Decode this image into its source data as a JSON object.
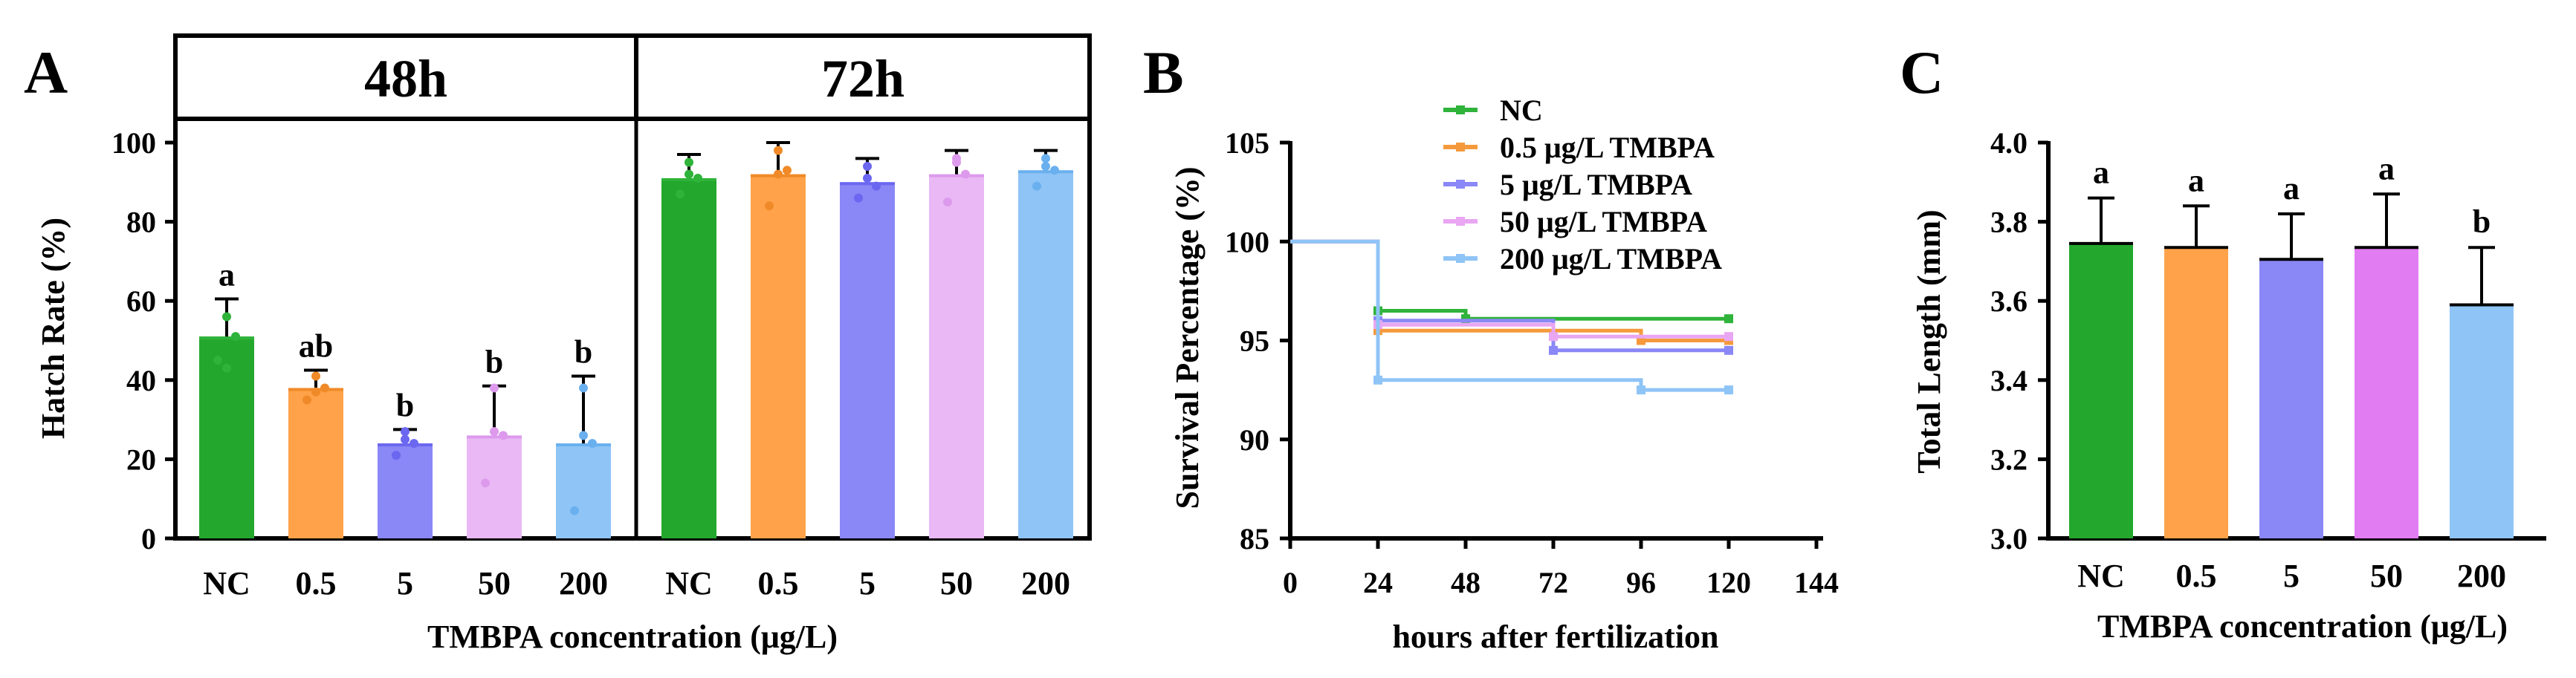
{
  "chart_data": [
    {
      "panel": "A",
      "type": "bar",
      "facets": [
        "48h",
        "72h"
      ],
      "categories": [
        "NC",
        "0.5",
        "5",
        "50",
        "200"
      ],
      "xlabel": "TMBPA concentration (μg/L)",
      "ylabel": "Hatch Rate (%)",
      "ylim": [
        0,
        100
      ],
      "yticks": [
        0,
        20,
        40,
        60,
        80,
        100
      ],
      "colors": [
        "#23a82d",
        "#ffa24a",
        "#8a87f6",
        "#e9b8f5",
        "#8fc4f6"
      ],
      "point_colors": [
        "#2fb33a",
        "#f08a28",
        "#6b67f0",
        "#dd9aed",
        "#6ab0ef"
      ],
      "groups": [
        {
          "facet": "48h",
          "values": [
            51,
            38,
            24,
            26,
            24
          ],
          "errors": [
            9.5,
            4.5,
            3.5,
            12.5,
            17
          ],
          "labels": [
            "a",
            "ab",
            "b",
            "b",
            "b"
          ],
          "points": [
            [
              56,
              45,
              51,
              43
            ],
            [
              41,
              35,
              38,
              37
            ],
            [
              27,
              21,
              24,
              25
            ],
            [
              38,
              14,
              26,
              27
            ],
            [
              38,
              7,
              24,
              26
            ]
          ]
        },
        {
          "facet": "72h",
          "values": [
            91,
            92,
            90,
            92,
            93
          ],
          "errors": [
            6,
            8,
            6,
            6,
            5
          ],
          "labels": [],
          "points": [
            [
              95,
              87,
              91,
              92
            ],
            [
              98,
              84,
              93,
              92
            ],
            [
              94,
              86,
              89,
              91
            ],
            [
              96,
              85,
              92,
              95
            ],
            [
              96,
              89,
              93,
              94
            ]
          ]
        }
      ]
    },
    {
      "panel": "B",
      "type": "line",
      "xlabel": "hours after fertilization",
      "ylabel": "Survival Percentage (%)",
      "xlim": [
        0,
        144
      ],
      "xticks": [
        0,
        24,
        48,
        72,
        96,
        120,
        144
      ],
      "ylim": [
        85,
        105
      ],
      "yticks": [
        85,
        90,
        95,
        100,
        105
      ],
      "legend_position": "top-right",
      "series": [
        {
          "name": "NC",
          "color": "#2fb33a",
          "x": [
            0,
            24,
            24,
            48,
            48,
            120
          ],
          "y": [
            100,
            100,
            96.5,
            96.5,
            96.1,
            96.1
          ]
        },
        {
          "name": "0.5 μg/L TMBPA",
          "color": "#f59a3c",
          "x": [
            0,
            24,
            24,
            96,
            96,
            120
          ],
          "y": [
            100,
            100,
            95.5,
            95.5,
            95.0,
            95.0
          ]
        },
        {
          "name": "5 μg/L TMBPA",
          "color": "#8a87f6",
          "x": [
            0,
            24,
            24,
            72,
            72,
            120
          ],
          "y": [
            100,
            100,
            96.0,
            96.0,
            94.5,
            94.5
          ]
        },
        {
          "name": "50 μg/L TMBPA",
          "color": "#e9a6f2",
          "x": [
            0,
            24,
            24,
            72,
            72,
            120
          ],
          "y": [
            100,
            100,
            95.8,
            95.8,
            95.2,
            95.2
          ]
        },
        {
          "name": "200 μg/L TMBPA",
          "color": "#8fc4f6",
          "x": [
            0,
            24,
            24,
            96,
            96,
            120
          ],
          "y": [
            100,
            100,
            93.0,
            93.0,
            92.5,
            92.5
          ]
        }
      ]
    },
    {
      "panel": "C",
      "type": "bar",
      "categories": [
        "NC",
        "0.5",
        "5",
        "50",
        "200"
      ],
      "xlabel": "TMBPA concentration (μg/L)",
      "ylabel": "Total Length (mm)",
      "ylim": [
        3.0,
        4.0
      ],
      "yticks": [
        3.0,
        3.2,
        3.4,
        3.6,
        3.8,
        4.0
      ],
      "values": [
        3.745,
        3.735,
        3.705,
        3.735,
        3.59
      ],
      "errors": [
        0.115,
        0.105,
        0.115,
        0.135,
        0.145
      ],
      "labels": [
        "a",
        "a",
        "a",
        "a",
        "b"
      ],
      "colors": [
        "#23a82d",
        "#ffa24a",
        "#8a87f6",
        "#e17cf2",
        "#8fc4f6"
      ]
    }
  ]
}
